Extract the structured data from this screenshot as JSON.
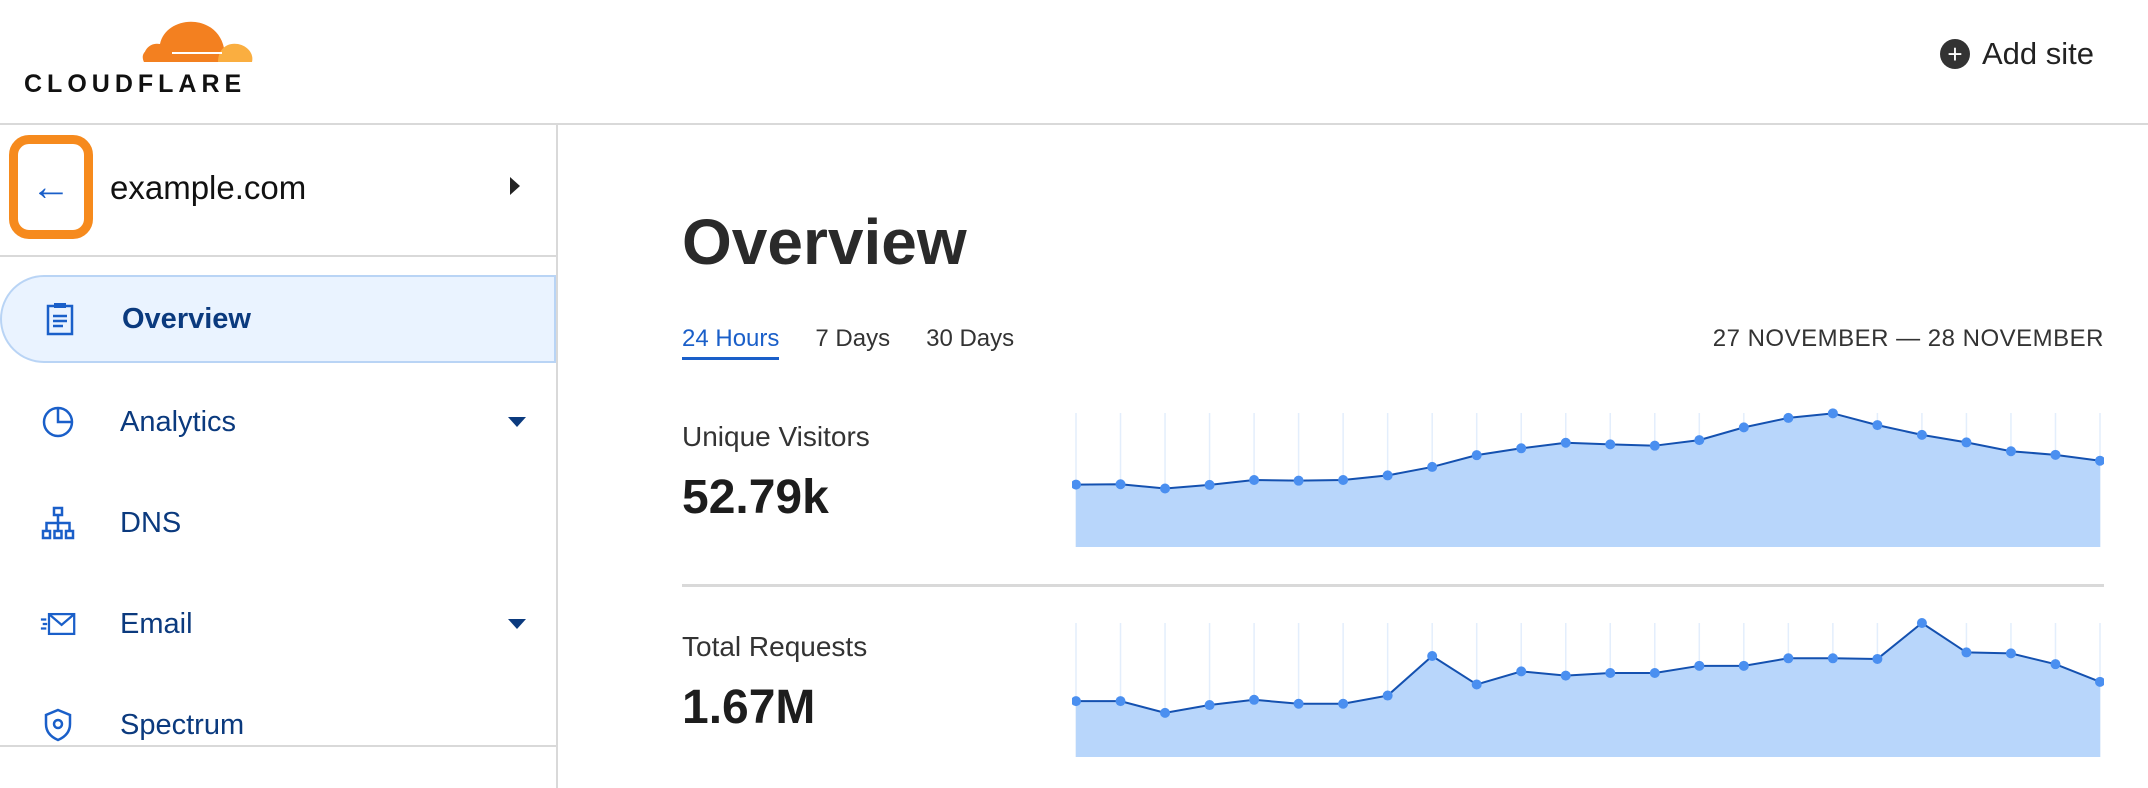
{
  "header": {
    "logo_text": "CLOUDFLARE",
    "add_site_label": "Add site",
    "add_site_icon": "plus-circle-icon"
  },
  "sidebar": {
    "zone": "example.com",
    "items": [
      {
        "label": "Overview",
        "icon": "clipboard-icon",
        "active": true,
        "dropdown": false
      },
      {
        "label": "Analytics",
        "icon": "pie-chart-icon",
        "active": false,
        "dropdown": true
      },
      {
        "label": "DNS",
        "icon": "network-icon",
        "active": false,
        "dropdown": false
      },
      {
        "label": "Email",
        "icon": "email-icon",
        "active": false,
        "dropdown": true
      },
      {
        "label": "Spectrum",
        "icon": "shield-icon",
        "active": false,
        "dropdown": false
      }
    ]
  },
  "main": {
    "title": "Overview",
    "tabs": [
      {
        "label": "24 Hours",
        "active": true
      },
      {
        "label": "7 Days"
      },
      {
        "label": "30 Days"
      }
    ],
    "date_range": "27 NOVEMBER — 28 NOVEMBER",
    "metrics": [
      {
        "label": "Unique Visitors",
        "value": "52.79k"
      },
      {
        "label": "Total Requests",
        "value": "1.67M"
      }
    ]
  },
  "chart_data": [
    {
      "type": "area",
      "series": [
        {
          "values": [
            191,
            192,
            179,
            190,
            205,
            203,
            205,
            219,
            245,
            281,
            302,
            319,
            314,
            310,
            327,
            366,
            395,
            409,
            373,
            343,
            320,
            293,
            282,
            264
          ]
        }
      ],
      "ylim": [
        0,
        410
      ],
      "grid": "vertical",
      "color": "#4a8ff0",
      "fill": "#b8d6fb"
    },
    {
      "type": "area",
      "series": [
        {
          "values": [
            171,
            171,
            135,
            159,
            175,
            163,
            163,
            188,
            309,
            222,
            262,
            249,
            257,
            257,
            279,
            279,
            302,
            302,
            300,
            410,
            320,
            317,
            284,
            230
          ]
        }
      ],
      "ylim": [
        0,
        410
      ],
      "grid": "vertical",
      "color": "#4a8ff0",
      "fill": "#b8d6fb"
    }
  ],
  "colors": {
    "accent": "#1a5fc9",
    "highlight": "#f68a1d",
    "nav_text": "#0b3a7e"
  }
}
